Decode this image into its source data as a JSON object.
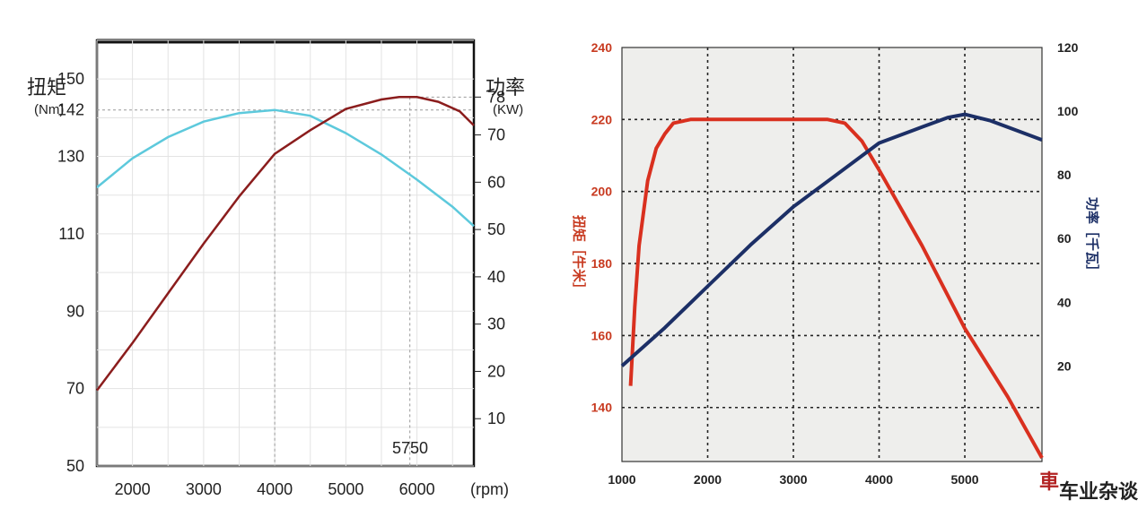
{
  "chart_data": [
    {
      "type": "line",
      "left_axis": {
        "title": "扭矩",
        "unit": "(Nm)",
        "ticks": [
          50,
          70,
          90,
          110,
          130,
          142,
          150
        ],
        "range": [
          50,
          160
        ]
      },
      "right_axis": {
        "title": "功率",
        "unit": "(KW)",
        "ticks": [
          10,
          20,
          30,
          40,
          50,
          60,
          70,
          78
        ],
        "range": [
          0,
          90
        ]
      },
      "x_axis": {
        "unit": "(rpm)",
        "ticks": [
          2000,
          3000,
          4000,
          5000,
          6000
        ],
        "range": [
          1500,
          6800
        ]
      },
      "annotation": "5750",
      "series": [
        {
          "axis": "left",
          "color": "#5dc9dc",
          "x": [
            1500,
            2000,
            2500,
            3000,
            3500,
            4000,
            4500,
            5000,
            5500,
            6000,
            6500,
            6800
          ],
          "y": [
            122,
            129.5,
            135,
            139,
            141.2,
            142,
            140.5,
            136,
            130.5,
            124,
            117,
            112
          ]
        },
        {
          "axis": "right",
          "color": "#8b1d1d",
          "x": [
            1500,
            2000,
            2500,
            3000,
            3500,
            4000,
            4500,
            5000,
            5500,
            5750,
            6000,
            6300,
            6600,
            6800
          ],
          "y": [
            16,
            26,
            36.5,
            47,
            57,
            66,
            71,
            75.5,
            77.5,
            78,
            78,
            77,
            75,
            72
          ]
        }
      ],
      "guides": {
        "x": 4000,
        "y_left": 142
      },
      "grid": true
    },
    {
      "type": "line",
      "left_axis": {
        "title": "扭矩［牛米］",
        "ticks": [
          140,
          160,
          180,
          200,
          220,
          240
        ],
        "range": [
          125,
          240
        ]
      },
      "right_axis": {
        "title": "功率［千瓦］",
        "ticks": [
          20,
          40,
          60,
          80,
          100,
          120
        ],
        "range": [
          -10,
          120
        ]
      },
      "x_axis": {
        "ticks": [
          1000,
          2000,
          3000,
          4000,
          5000
        ],
        "range": [
          1000,
          5900
        ]
      },
      "grid": true,
      "series": [
        {
          "axis": "left",
          "color": "#d9301f",
          "x": [
            1100,
            1150,
            1200,
            1300,
            1400,
            1500,
            1600,
            1800,
            2000,
            2500,
            3000,
            3400,
            3600,
            3800,
            4000,
            4500,
            5000,
            5500,
            5900
          ],
          "y": [
            146,
            168,
            185,
            203,
            212,
            216,
            219,
            220,
            220,
            220,
            220,
            220,
            219,
            214,
            206,
            185,
            162,
            143,
            126
          ]
        },
        {
          "axis": "right",
          "color": "#1c2f66",
          "x": [
            1000,
            1500,
            2000,
            2500,
            3000,
            3500,
            4000,
            4500,
            4800,
            5000,
            5300,
            5600,
            5900
          ],
          "y": [
            20,
            32,
            45,
            58,
            70,
            80,
            90,
            95,
            98,
            99,
            97,
            94,
            91
          ]
        }
      ]
    }
  ],
  "watermark": {
    "glyph": "車",
    "text": "车业杂谈"
  }
}
